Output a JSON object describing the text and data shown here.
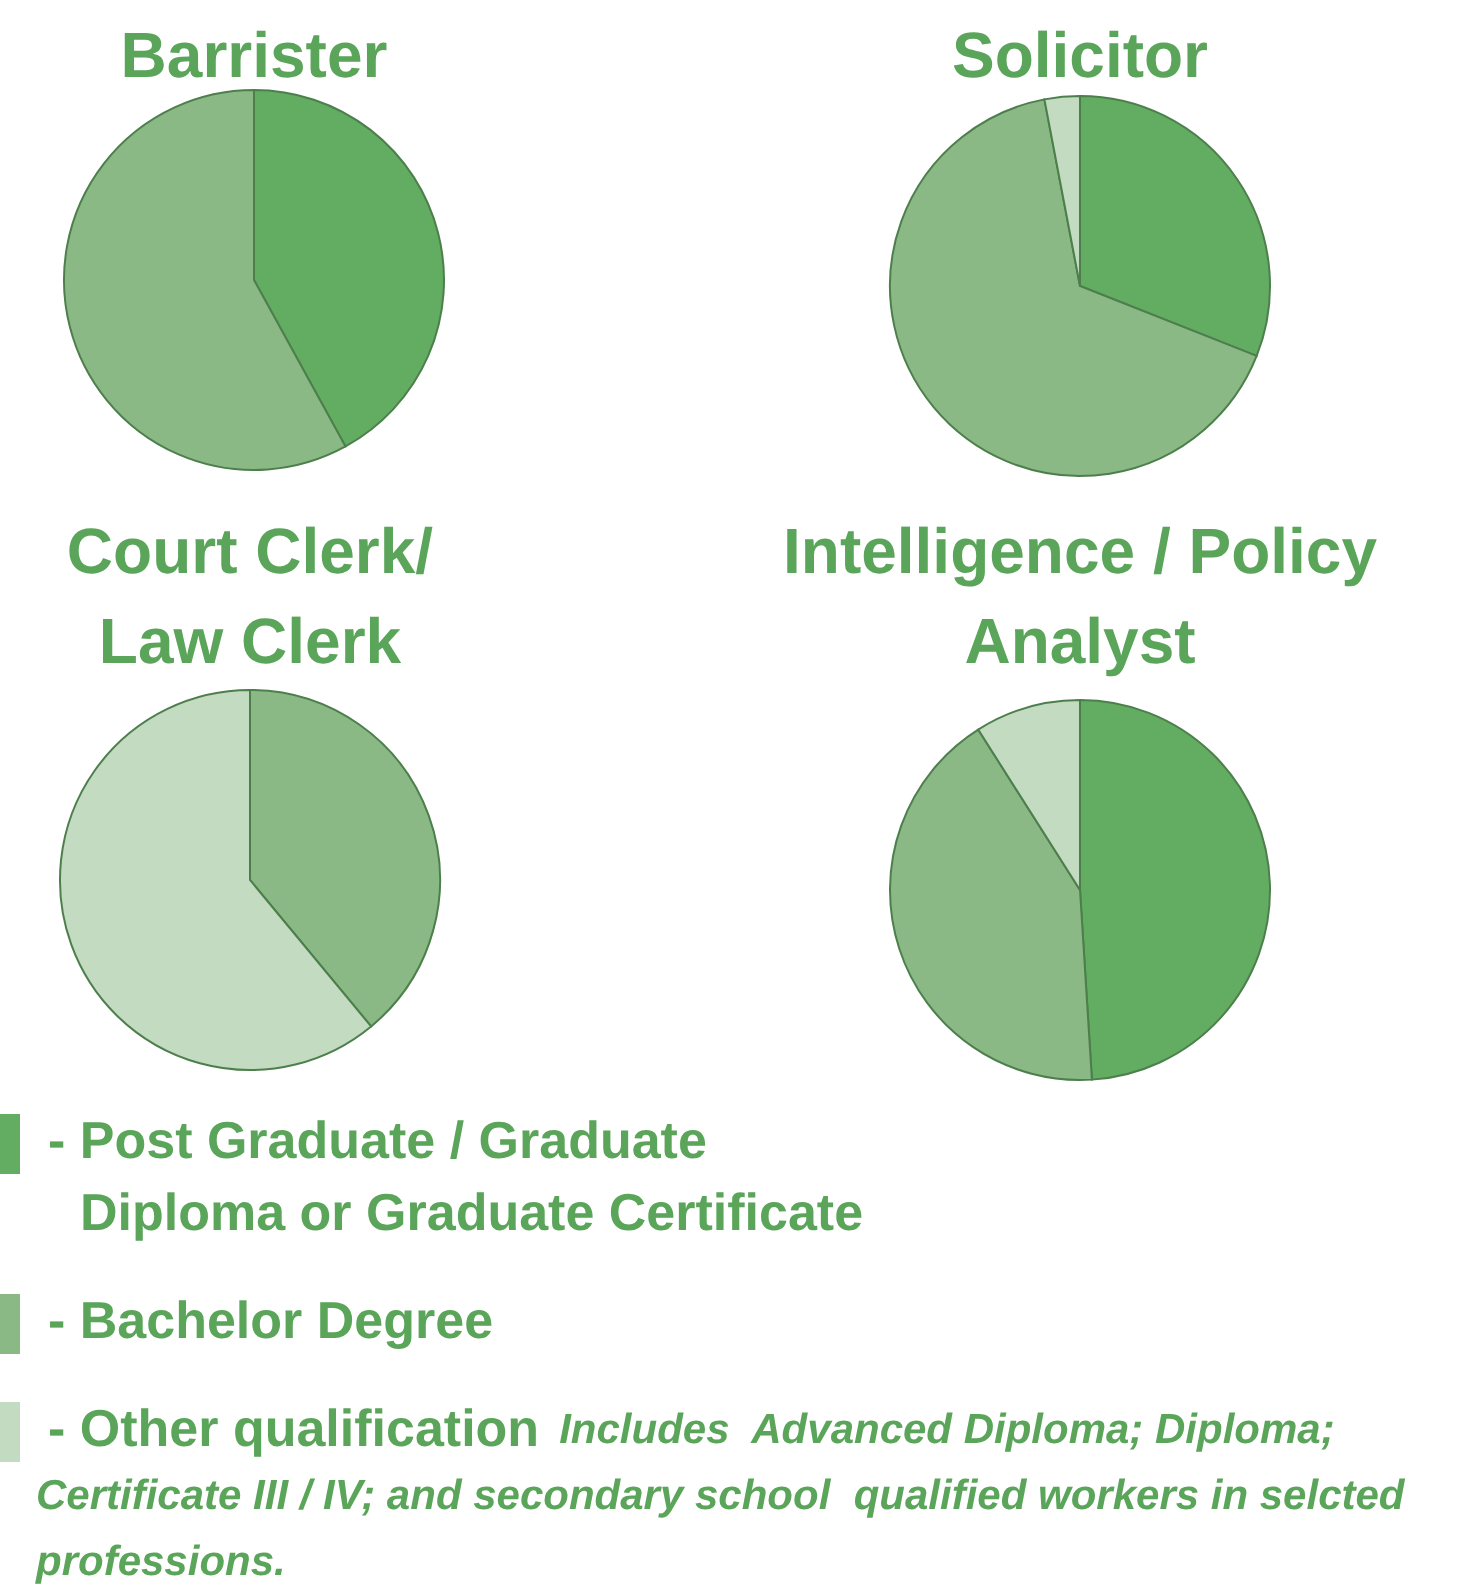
{
  "chart_data": [
    {
      "type": "pie",
      "title": "Barrister",
      "categories": [
        null,
        null
      ],
      "values": [
        42,
        58
      ],
      "colors": [
        "#62ad62",
        "#8ab985"
      ]
    },
    {
      "type": "pie",
      "title": "Solicitor",
      "categories": [
        null,
        null,
        null
      ],
      "values": [
        31,
        66,
        3
      ],
      "colors": [
        "#62ad62",
        "#8ab985",
        "#c3dbc0"
      ]
    },
    {
      "type": "pie",
      "title": "Court Clerk/\nLaw Clerk",
      "categories": [
        null,
        null
      ],
      "values": [
        39,
        61
      ],
      "colors": [
        "#8ab985",
        "#c3dbc0"
      ]
    },
    {
      "type": "pie",
      "title": "Intelligence / Policy\nAnalyst",
      "categories": [
        "- Post Graduate / Graduate\nDiploma or Graduate Certificate",
        "- Bachelor Degree",
        "- Other qualification"
      ],
      "values": [
        49,
        42,
        9
      ],
      "colors": [
        "#62ad62",
        "#8ab985",
        "#c3dbc0"
      ],
      "legend": "bottom",
      "annotations": [
        "Includes  Advanced Diploma; Diploma; Certificate III / IV; and secondary school  qualified workers in selcted professions."
      ]
    }
  ]
}
